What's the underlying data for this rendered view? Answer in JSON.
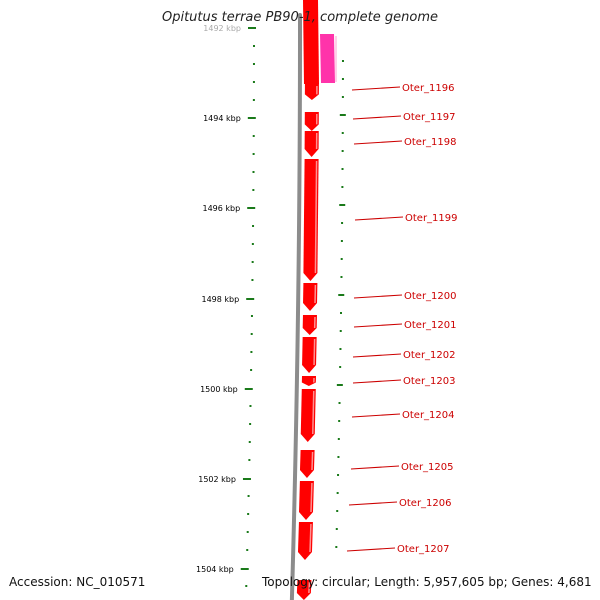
{
  "title": "Opitutus terrae PB90-1, complete genome",
  "footer": {
    "accession": "Accession: NC_010571",
    "topology": "Topology: circular; Length: 5,957,605 bp; Genes: 4,681"
  },
  "ruler_labels": [
    "1492 kbp",
    "1494 kbp",
    "1496 kbp",
    "1498 kbp",
    "1500 kbp",
    "1502 kbp",
    "1504 kbp"
  ],
  "genes": [
    {
      "label": "Oter_1196"
    },
    {
      "label": "Oter_1197"
    },
    {
      "label": "Oter_1198"
    },
    {
      "label": "Oter_1199"
    },
    {
      "label": "Oter_1200"
    },
    {
      "label": "Oter_1201"
    },
    {
      "label": "Oter_1202"
    },
    {
      "label": "Oter_1203"
    },
    {
      "label": "Oter_1204"
    },
    {
      "label": "Oter_1205"
    },
    {
      "label": "Oter_1206"
    },
    {
      "label": "Oter_1207"
    }
  ],
  "colors": {
    "gene_red": "#ff0000",
    "gene_pink": "#ff33aa",
    "backbone": "#8c8c8c",
    "ticks": "#1a7a1a",
    "label_red": "#cc0000"
  }
}
